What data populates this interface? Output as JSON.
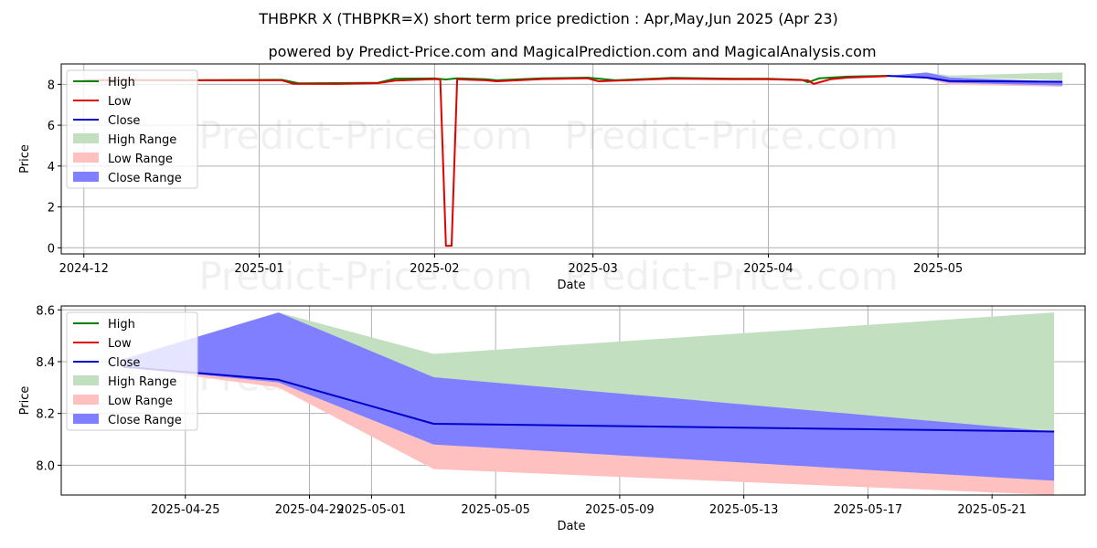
{
  "title": "THBPKR X (THBPKR=X) short term price prediction : Apr,May,Jun 2025 (Apr 23)",
  "subtitle": "powered by Predict-Price.com and MagicalPrediction.com and MagicalAnalysis.com",
  "watermark": "Predict-Price.com",
  "colors": {
    "high": "#008000",
    "low": "#e00000",
    "close": "#0000cc",
    "high_range": "#c2e0c0",
    "low_range": "#ffc0c0",
    "close_range": "#7f7fff",
    "grid": "#b0b0b0"
  },
  "legend": [
    "High",
    "Low",
    "Close",
    "High Range",
    "Low Range",
    "Close Range"
  ],
  "chart_data": [
    {
      "type": "line",
      "xlabel": "Date",
      "ylabel": "Price",
      "xlim": [
        "2024-11-27",
        "2025-05-27"
      ],
      "ylim": [
        -0.3,
        9.0
      ],
      "yticks": [
        0,
        2,
        4,
        6,
        8
      ],
      "xticks": [
        "2024-12-01",
        "2025-01-01",
        "2025-02-01",
        "2025-03-01",
        "2025-04-01",
        "2025-05-01"
      ],
      "xtick_labels": [
        "2024-12",
        "2025-01",
        "2025-02",
        "2025-03",
        "2025-04",
        "2025-05"
      ],
      "grid": true,
      "legend_position": "top-left",
      "series": [
        {
          "name": "High",
          "x": [
            "2024-12-01",
            "2024-12-10",
            "2024-12-20",
            "2025-01-05",
            "2025-01-08",
            "2025-01-15",
            "2025-01-22",
            "2025-01-25",
            "2025-02-01",
            "2025-02-03",
            "2025-02-05",
            "2025-02-10",
            "2025-02-12",
            "2025-02-20",
            "2025-02-28",
            "2025-03-05",
            "2025-03-15",
            "2025-03-25",
            "2025-04-01",
            "2025-04-07",
            "2025-04-08",
            "2025-04-10",
            "2025-04-15",
            "2025-04-22"
          ],
          "y": [
            8.2,
            8.21,
            8.2,
            8.22,
            8.05,
            8.06,
            8.08,
            8.28,
            8.29,
            8.24,
            8.3,
            8.25,
            8.2,
            8.3,
            8.33,
            8.2,
            8.32,
            8.28,
            8.27,
            8.22,
            8.1,
            8.3,
            8.38,
            8.42
          ]
        },
        {
          "name": "Low",
          "x": [
            "2024-12-01",
            "2024-12-10",
            "2024-12-20",
            "2025-01-05",
            "2025-01-07",
            "2025-01-15",
            "2025-01-22",
            "2025-01-25",
            "2025-02-01",
            "2025-02-02",
            "2025-02-03",
            "2025-02-04",
            "2025-02-05",
            "2025-02-10",
            "2025-02-12",
            "2025-02-20",
            "2025-02-28",
            "2025-03-02",
            "2025-03-15",
            "2025-03-25",
            "2025-04-01",
            "2025-04-08",
            "2025-04-09",
            "2025-04-12",
            "2025-04-15",
            "2025-04-22"
          ],
          "y": [
            8.2,
            8.21,
            8.2,
            8.2,
            8.03,
            8.02,
            8.06,
            8.18,
            8.26,
            8.24,
            0.1,
            0.1,
            8.25,
            8.2,
            8.15,
            8.26,
            8.3,
            8.15,
            8.28,
            8.25,
            8.25,
            8.2,
            8.02,
            8.25,
            8.33,
            8.4
          ]
        },
        {
          "name": "Close",
          "x": [
            "2025-04-22",
            "2025-04-29",
            "2025-05-03",
            "2025-05-23"
          ],
          "y": [
            8.42,
            8.33,
            8.16,
            8.13
          ]
        }
      ],
      "ranges": [
        {
          "name": "High Range",
          "x": [
            "2025-04-22",
            "2025-04-29",
            "2025-05-03",
            "2025-05-23"
          ],
          "lower": [
            8.4,
            8.45,
            8.35,
            8.2
          ],
          "upper": [
            8.42,
            8.58,
            8.43,
            8.58
          ]
        },
        {
          "name": "Low Range",
          "x": [
            "2025-04-22",
            "2025-04-29",
            "2025-05-03",
            "2025-05-23"
          ],
          "lower": [
            8.4,
            8.28,
            7.98,
            7.88
          ],
          "upper": [
            8.42,
            8.3,
            8.08,
            7.94
          ]
        },
        {
          "name": "Close Range",
          "x": [
            "2025-04-22",
            "2025-04-29",
            "2025-05-03",
            "2025-05-23"
          ],
          "lower": [
            8.4,
            8.3,
            8.08,
            7.94
          ],
          "upper": [
            8.42,
            8.58,
            8.34,
            8.13
          ]
        }
      ]
    },
    {
      "type": "line",
      "xlabel": "Date",
      "ylabel": "Price",
      "xlim": [
        "2025-04-21",
        "2025-05-24"
      ],
      "ylim": [
        7.885,
        8.615
      ],
      "yticks": [
        8.0,
        8.2,
        8.4,
        8.6
      ],
      "ytick_labels": [
        "8.0",
        "8.2",
        "8.4",
        "8.6"
      ],
      "xticks": [
        "2025-04-25",
        "2025-04-29",
        "2025-05-01",
        "2025-05-05",
        "2025-05-09",
        "2025-05-13",
        "2025-05-17",
        "2025-05-21"
      ],
      "xtick_labels": [
        "2025-04-25",
        "2025-04-29",
        "2025-05-01",
        "2025-05-05",
        "2025-05-09",
        "2025-05-13",
        "2025-05-17",
        "2025-05-21"
      ],
      "grid": true,
      "legend_position": "top-left",
      "series": [
        {
          "name": "High",
          "x": [],
          "y": []
        },
        {
          "name": "Low",
          "x": [],
          "y": []
        },
        {
          "name": "Close",
          "x": [
            "2025-04-23",
            "2025-04-28",
            "2025-05-03",
            "2025-05-23"
          ],
          "y": [
            8.38,
            8.33,
            8.16,
            8.13
          ]
        }
      ],
      "ranges": [
        {
          "name": "High Range",
          "x": [
            "2025-04-23",
            "2025-04-28",
            "2025-05-03",
            "2025-05-23"
          ],
          "lower": [
            8.38,
            8.33,
            8.34,
            8.13
          ],
          "upper": [
            8.39,
            8.59,
            8.43,
            8.59
          ]
        },
        {
          "name": "Low Range",
          "x": [
            "2025-04-23",
            "2025-04-28",
            "2025-05-03",
            "2025-05-23"
          ],
          "lower": [
            8.38,
            8.3,
            7.985,
            7.885
          ],
          "upper": [
            8.39,
            8.32,
            8.08,
            7.94
          ]
        },
        {
          "name": "Close Range",
          "x": [
            "2025-04-23",
            "2025-04-28",
            "2025-05-03",
            "2025-05-23"
          ],
          "lower": [
            8.38,
            8.32,
            8.08,
            7.94
          ],
          "upper": [
            8.41,
            8.59,
            8.34,
            8.13
          ]
        }
      ]
    }
  ]
}
